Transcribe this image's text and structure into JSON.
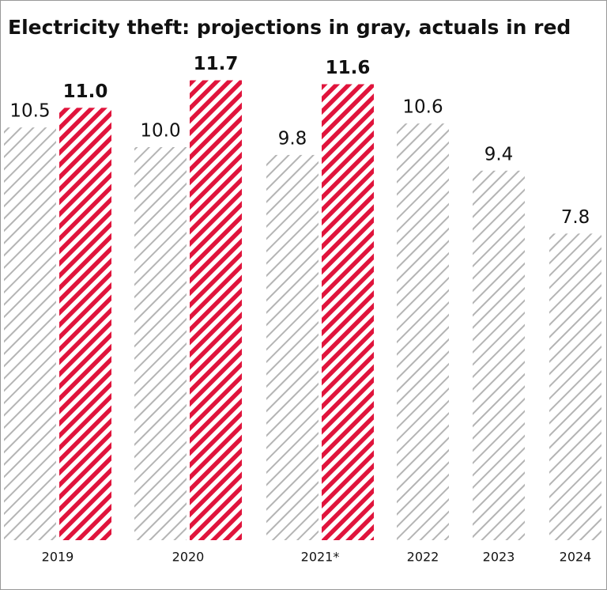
{
  "chart_data": {
    "type": "bar",
    "title": "Electricity theft: projections in gray, actuals in red",
    "categories": [
      "2019",
      "2020",
      "2021*",
      "2022",
      "2023",
      "2024"
    ],
    "series": [
      {
        "name": "projections",
        "color": "#b4b4b4",
        "values": [
          10.5,
          10.0,
          9.8,
          10.6,
          9.4,
          7.8
        ],
        "value_labels": [
          "10.5",
          "10.0",
          "9.8",
          "10.6",
          "9.4",
          "7.8"
        ]
      },
      {
        "name": "actuals",
        "color": "#e0143c",
        "values": [
          11.0,
          11.7,
          11.6,
          null,
          null,
          null
        ],
        "value_labels": [
          "11.0",
          "11.7",
          "11.6",
          null,
          null,
          null
        ]
      }
    ]
  }
}
